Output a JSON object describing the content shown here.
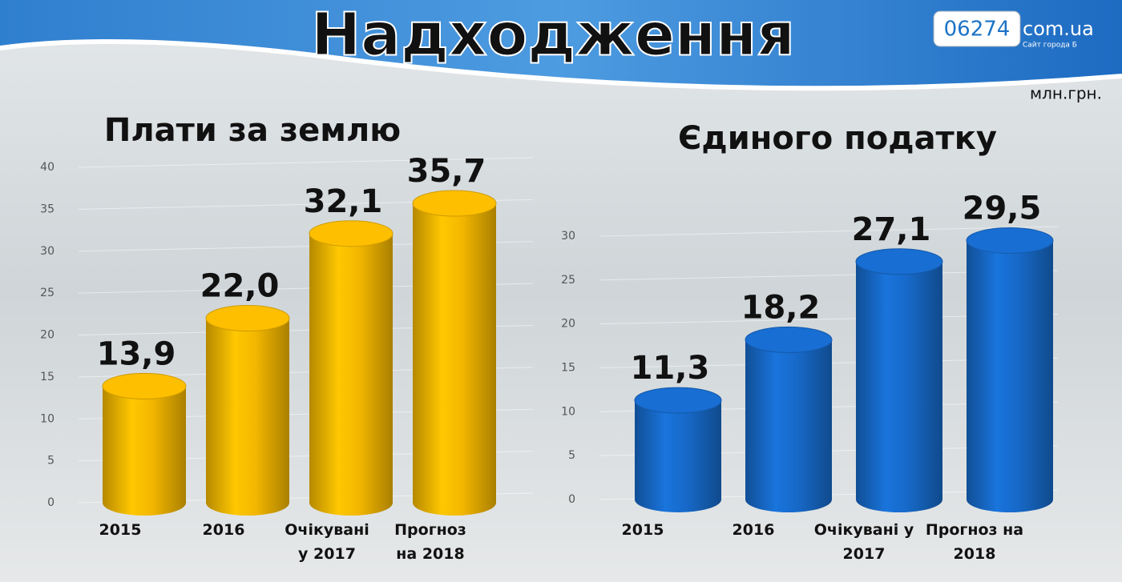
{
  "header": {
    "title": "Надходження",
    "unit": "млн.грн."
  },
  "watermark": {
    "number": "06274",
    "domain": "com.ua",
    "tagline": "Сайт города Б"
  },
  "chart_data": [
    {
      "type": "bar",
      "title": "Плати за землю",
      "categories": [
        "2015",
        "2016",
        "Очікувані у 2017",
        "Прогноз на 2018"
      ],
      "values": [
        13.9,
        22.0,
        32.1,
        35.7
      ],
      "value_labels": [
        "13,9",
        "22,0",
        "32,1",
        "35,7"
      ],
      "color": "#f2b600",
      "ylim": [
        0,
        40
      ],
      "yticks": [
        0,
        5,
        10,
        15,
        20,
        25,
        30,
        35,
        40
      ],
      "grid": true
    },
    {
      "type": "bar",
      "title": "Єдиного податку",
      "categories": [
        "2015",
        "2016",
        "Очікувані у 2017",
        "Прогноз на 2018"
      ],
      "values": [
        11.3,
        18.2,
        27.1,
        29.5
      ],
      "value_labels": [
        "11,3",
        "18,2",
        "27,1",
        "29,5"
      ],
      "color": "#1769c8",
      "ylim": [
        0,
        30
      ],
      "yticks": [
        0,
        5,
        10,
        15,
        20,
        25,
        30
      ],
      "grid": true
    }
  ]
}
